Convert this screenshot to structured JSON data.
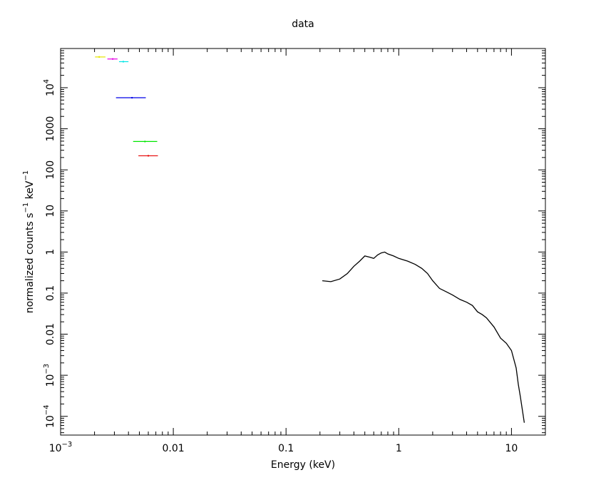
{
  "chart_data": {
    "type": "line",
    "title": "data",
    "xlabel": "Energy (keV)",
    "ylabel_parts": [
      "normalized counts s",
      "−1",
      " keV",
      "−1"
    ],
    "xlog": true,
    "ylog": true,
    "xlim": [
      0.001,
      20
    ],
    "ylim": [
      3.5e-05,
      90000
    ],
    "xticks": [
      {
        "value": 0.001,
        "label": "10",
        "exponent": "−3"
      },
      0.01,
      0.1,
      1,
      10
    ],
    "yticks": [
      {
        "value": 0.0001,
        "label": "10",
        "exponent": "−4"
      },
      {
        "value": 0.001,
        "label": "10",
        "exponent": "−3"
      },
      0.01,
      0.1,
      1,
      10,
      100,
      1000,
      {
        "value": 10000,
        "label": "10",
        "exponent": "4"
      }
    ],
    "series": [
      {
        "color": "#e6e600",
        "x": [
          0.0022
        ],
        "x_low": [
          0.00202
        ],
        "x_high": [
          0.0025
        ],
        "values": [
          56000
        ]
      },
      {
        "color": "#e600e6",
        "x": [
          0.0029
        ],
        "x_low": [
          0.0026
        ],
        "x_high": [
          0.0032
        ],
        "values": [
          50000
        ]
      },
      {
        "color": "#00e6e6",
        "x": [
          0.0036
        ],
        "x_low": [
          0.0033
        ],
        "x_high": [
          0.004
        ],
        "values": [
          43000
        ]
      },
      {
        "color": "#0000e6",
        "x": [
          0.0043
        ],
        "x_low": [
          0.0031
        ],
        "x_high": [
          0.0057
        ],
        "values": [
          5700
        ]
      },
      {
        "color": "#00e600",
        "x": [
          0.0056
        ],
        "x_low": [
          0.0044
        ],
        "x_high": [
          0.0072
        ],
        "values": [
          490
        ]
      },
      {
        "color": "#e60000",
        "x": [
          0.006
        ],
        "x_low": [
          0.0049
        ],
        "x_high": [
          0.0073
        ],
        "values": [
          220
        ]
      },
      {
        "color": "#000000",
        "x": [
          0.21,
          0.25,
          0.3,
          0.35,
          0.4,
          0.45,
          0.5,
          0.55,
          0.6,
          0.65,
          0.7,
          0.75,
          0.8,
          0.9,
          1.0,
          1.2,
          1.4,
          1.6,
          1.8,
          2.0,
          2.3,
          2.6,
          3.0,
          3.5,
          4.0,
          4.5,
          5.0,
          5.5,
          6.0,
          7.0,
          8.0,
          9.0,
          10.0,
          11.0,
          11.5,
          12.0,
          13.0
        ],
        "values": [
          0.2,
          0.19,
          0.22,
          0.3,
          0.45,
          0.6,
          0.8,
          0.75,
          0.7,
          0.85,
          0.95,
          1.0,
          0.9,
          0.8,
          0.7,
          0.6,
          0.5,
          0.4,
          0.3,
          0.2,
          0.13,
          0.11,
          0.09,
          0.07,
          0.06,
          0.05,
          0.035,
          0.03,
          0.025,
          0.015,
          0.008,
          0.006,
          0.004,
          0.0015,
          0.0006,
          0.0003,
          7e-05
        ]
      }
    ]
  }
}
